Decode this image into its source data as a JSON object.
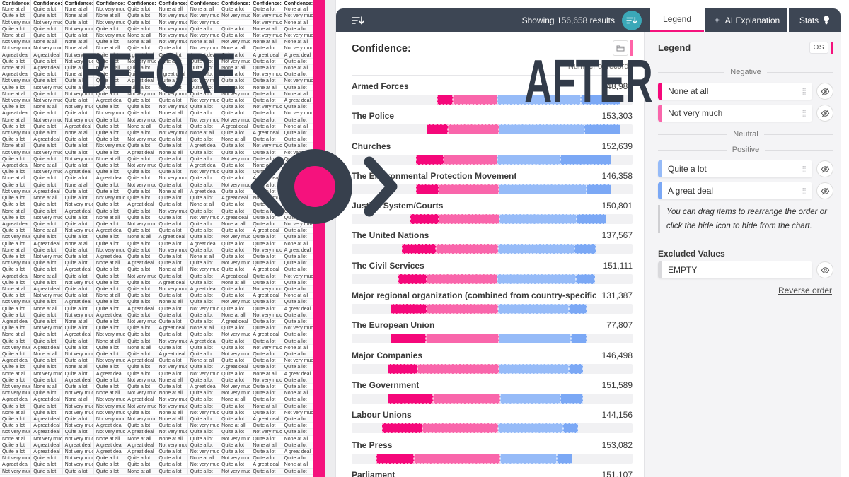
{
  "overlay": {
    "before": "BEFORE",
    "after": "AFTER"
  },
  "toolbar": {
    "results_text": "Showing 156,658 results"
  },
  "tabs": [
    {
      "label": "Legend",
      "active": true
    },
    {
      "label": "AI Explanation",
      "active": false
    },
    {
      "label": "Stats",
      "active": false
    }
  ],
  "table": {
    "headers": [
      "Confidence: Chu",
      "Confidence: Arm",
      "Confidence: The",
      "Confidence: Lab",
      "Confidence: The",
      "Confidence: Par",
      "Confidence: The",
      "Confidence: Maj",
      "Confidence: The",
      "Confidence: The"
    ],
    "value_map": {
      "N": "None at all",
      "V": "Not very much",
      "Q": "Quite a lot",
      "G": "A great deal",
      "_": ""
    },
    "rows": [
      "NQNVQNNQQN",
      "QQNNQVVVVV",
      "VVQVQVV_VN",
      "QQVQQVQQNQ",
      "NQQVNVVQVV",
      "VNNQNVNVNN",
      "VVNNQQVNQV",
      "GGVQGQGQGG",
      "QQVQVQQVQQ",
      "NGQNQ_QNQN",
      "GQNQQGQQVQ",
      "VQQQGQVQQV",
      "QVQVQQQQNQ",
      "NQVQVVQVQN",
      "VVQGQQVQQG",
      "QNVQQVQQVQ",
      "GQQVQNQQQV",
      "NVVQVQVVQQ",
      "QQGQNQQGQN",
      "VQNQQVNQGQ",
      "QGQQVQQNQQ",
      "NQQVQQGQVQ",
      "VVQQGNQQQV",
      "QQVNQQQVQQ",
      "GNQQVQGQNQ",
      "QVGQQQVQQN",
      "NQQGQVQQGQ",
      "QQNQVQQVQG",
      "VGQQQNGQQQ",
      "QNQVQQQGVQ",
      "QQVQGQNQQV",
      "NQGQQVQQQQ",
      "QVQNQQVGQQ",
      "GQQQVQQNQV",
      "QNVGQQQQGQ",
      "VQQQNGQVQQ",
      "QGNQQQGQQN",
      "NQQVQVQQVG",
      "QVQGQQNQQQ",
      "VQQNGQQVQQ",
      "QQGQQNVQGQ",
      "GNQQVQQGQV",
      "QQVQQGQNQQ",
      "NGQQQVGQVQ",
      "QVQNQQQQGN",
      "VQGQQNQVQQ",
      "QNQQGQVQQG",
      "QQVGQQQNVQ",
      "GQNQVQQGQQ",
      "QVQQQGNQQV",
      "NQGVQQQVGQ",
      "QQQNQVGQQQ",
      "VGQQNQQQVN",
      "QNVQQGQVQQ",
      "GQQVGQNQQV",
      "QQNQQVQGQQ",
      "NVQGQQVQNG",
      "QQGQVNQQVQ",
      "VNQQQQGVQQ",
      "VQVNVNQVQN",
      "GGNVGVQNQQ",
      "QQVVVVQQNQ",
      "NQVVQNVQQV",
      "QGQVVNQQGQ",
      "QGVGQQVNQQ",
      "VGQVGVQQVQ",
      "NVVNNNQVQN",
      "QGGGGVQQNQ",
      "QGVGGQVQQG",
      "VQVQQQNVQQ",
      "GQVQQQVQGN",
      "VQQQNQQVQQ"
    ]
  },
  "chart": {
    "title": "Confidence:",
    "value_header": "Number of records",
    "segment_colors": [
      "#f5077a",
      "#f966ab",
      "#96bbf8",
      "#7ba8f5"
    ],
    "rows": [
      {
        "label": "Armed Forces",
        "value": "148,983",
        "offset": 30.4,
        "segments": [
          5.5,
          15.9,
          29.9,
          14.0
        ]
      },
      {
        "label": "The Police",
        "value": "153,303",
        "offset": 26.6,
        "segments": [
          7.6,
          18.1,
          30.6,
          12.8
        ]
      },
      {
        "label": "Churches",
        "value": "152,639",
        "offset": 22.9,
        "segments": [
          9.8,
          19.1,
          22.6,
          18.1
        ]
      },
      {
        "label": "The Environmental Protection Movement",
        "value": "146,358",
        "offset": 22.9,
        "segments": [
          8.0,
          21.4,
          31.4,
          8.8
        ]
      },
      {
        "label": "Justice System/Courts",
        "value": "150,801",
        "offset": 20.9,
        "segments": [
          10.1,
          21.6,
          27.4,
          10.8
        ]
      },
      {
        "label": "The United Nations",
        "value": "137,567",
        "offset": 17.8,
        "segments": [
          12.3,
          22.1,
          27.1,
          7.5
        ]
      },
      {
        "label": "The Civil Services",
        "value": "151,111",
        "offset": 16.6,
        "segments": [
          10.1,
          25.1,
          28.1,
          6.8
        ]
      },
      {
        "label": "Major regional organization (combined from country-specific)",
        "value": "131,387",
        "offset": 13.8,
        "segments": [
          12.8,
          25.6,
          25.1,
          6.3
        ]
      },
      {
        "label": "The European Union",
        "value": "77,807",
        "offset": 13.8,
        "segments": [
          12.6,
          25.9,
          25.9,
          5.5
        ]
      },
      {
        "label": "Major Companies",
        "value": "146,498",
        "offset": 12.8,
        "segments": [
          10.6,
          28.9,
          25.1,
          5.0
        ]
      },
      {
        "label": "The Government",
        "value": "151,589",
        "offset": 12.8,
        "segments": [
          16.1,
          23.9,
          21.6,
          8.0
        ]
      },
      {
        "label": "Labour Unions",
        "value": "144,156",
        "offset": 10.8,
        "segments": [
          14.3,
          27.1,
          23.1,
          5.3
        ]
      },
      {
        "label": "The Press",
        "value": "153,082",
        "offset": 8.8,
        "segments": [
          13.3,
          30.9,
          20.1,
          5.5
        ]
      },
      {
        "label": "Parliament",
        "value": "151,107",
        "offset": 12.0,
        "segments": [
          14.0,
          26.0,
          22.0,
          6.0
        ]
      }
    ]
  },
  "legend": {
    "title": "Legend",
    "badge": "OS",
    "sections": [
      {
        "name": "Negative",
        "items": [
          {
            "label": "None at all",
            "color": "#f5077a"
          },
          {
            "label": "Not very much",
            "color": "#f966ab"
          }
        ]
      },
      {
        "name": "Neutral",
        "items": []
      },
      {
        "name": "Positive",
        "items": [
          {
            "label": "Quite a lot",
            "color": "#96bbf8"
          },
          {
            "label": "A great deal",
            "color": "#7ba8f5"
          }
        ]
      }
    ],
    "hint": "You can drag items to rearrange the order or click the hide icon to hide from the chart.",
    "excluded_title": "Excluded Values",
    "excluded_items": [
      {
        "label": "EMPTY",
        "color": "#d9d9dc"
      }
    ],
    "reverse_link": "Reverse order"
  }
}
